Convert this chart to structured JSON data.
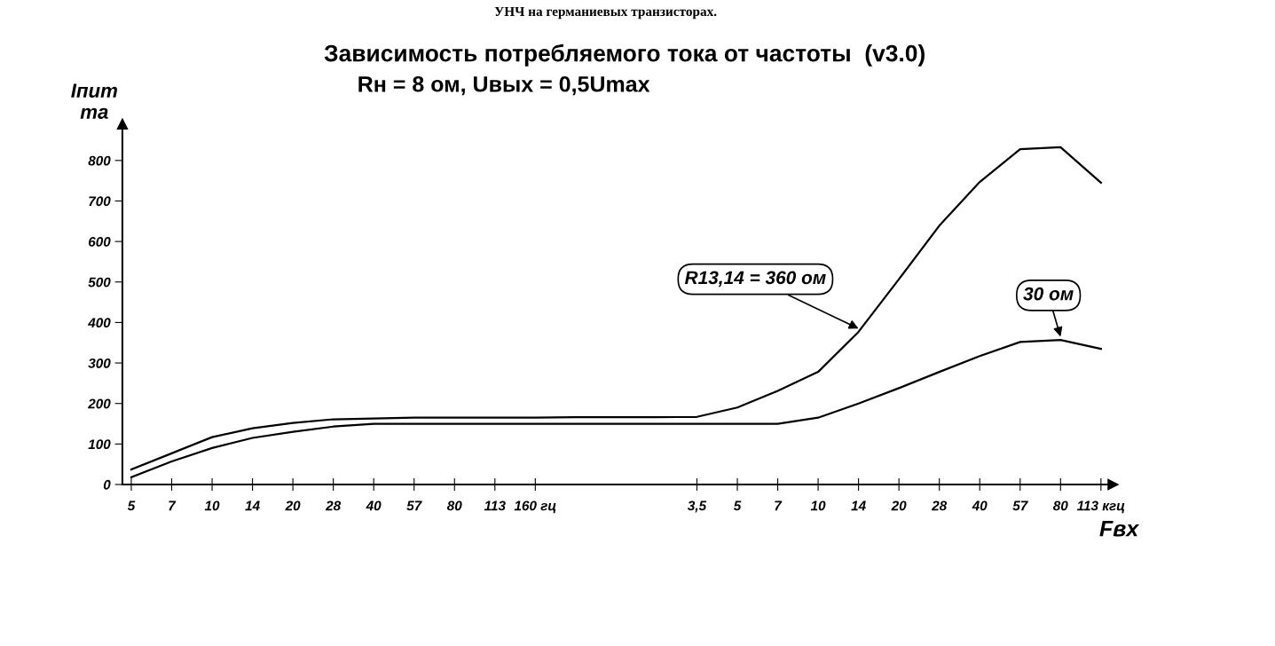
{
  "chart_data": {
    "type": "line",
    "title": "Зависимость потребляемого тока от частоты  (v3.0)",
    "subtitle": "Rн = 8 ом, Uвых = 0,5Umax",
    "ylabel": "Iпит\nma",
    "xlabel": "Fвх",
    "annotations": [
      "УНЧ на германиевых транзисторах."
    ],
    "categories": [
      "5",
      "7",
      "10",
      "14",
      "20",
      "28",
      "40",
      "57",
      "80",
      "113",
      "160 гц",
      null,
      null,
      null,
      "3,5",
      "5",
      "7",
      "10",
      "14",
      "20",
      "28",
      "40",
      "57",
      "80",
      "113 кгц"
    ],
    "series": [
      {
        "name": "R13,14 = 360 ом",
        "color": "#000000",
        "values": [
          37,
          77,
          117,
          139,
          152,
          161,
          163,
          165,
          165,
          165,
          165,
          166,
          166,
          166,
          167,
          190,
          231,
          278,
          377,
          507,
          639,
          747,
          828,
          833,
          745
        ]
      },
      {
        "name": "30 ом",
        "color": "#000000",
        "values": [
          18,
          57,
          90,
          115,
          130,
          143,
          150,
          150,
          150,
          150,
          150,
          150,
          150,
          150,
          150,
          150,
          150,
          165,
          200,
          238,
          278,
          317,
          352,
          357,
          335
        ]
      }
    ],
    "ylim": [
      0,
      890
    ],
    "yticks": [
      0,
      100,
      200,
      300,
      400,
      500,
      600,
      700,
      800
    ],
    "grid": false,
    "legend": false,
    "marker": "none",
    "line_style": "solid"
  }
}
